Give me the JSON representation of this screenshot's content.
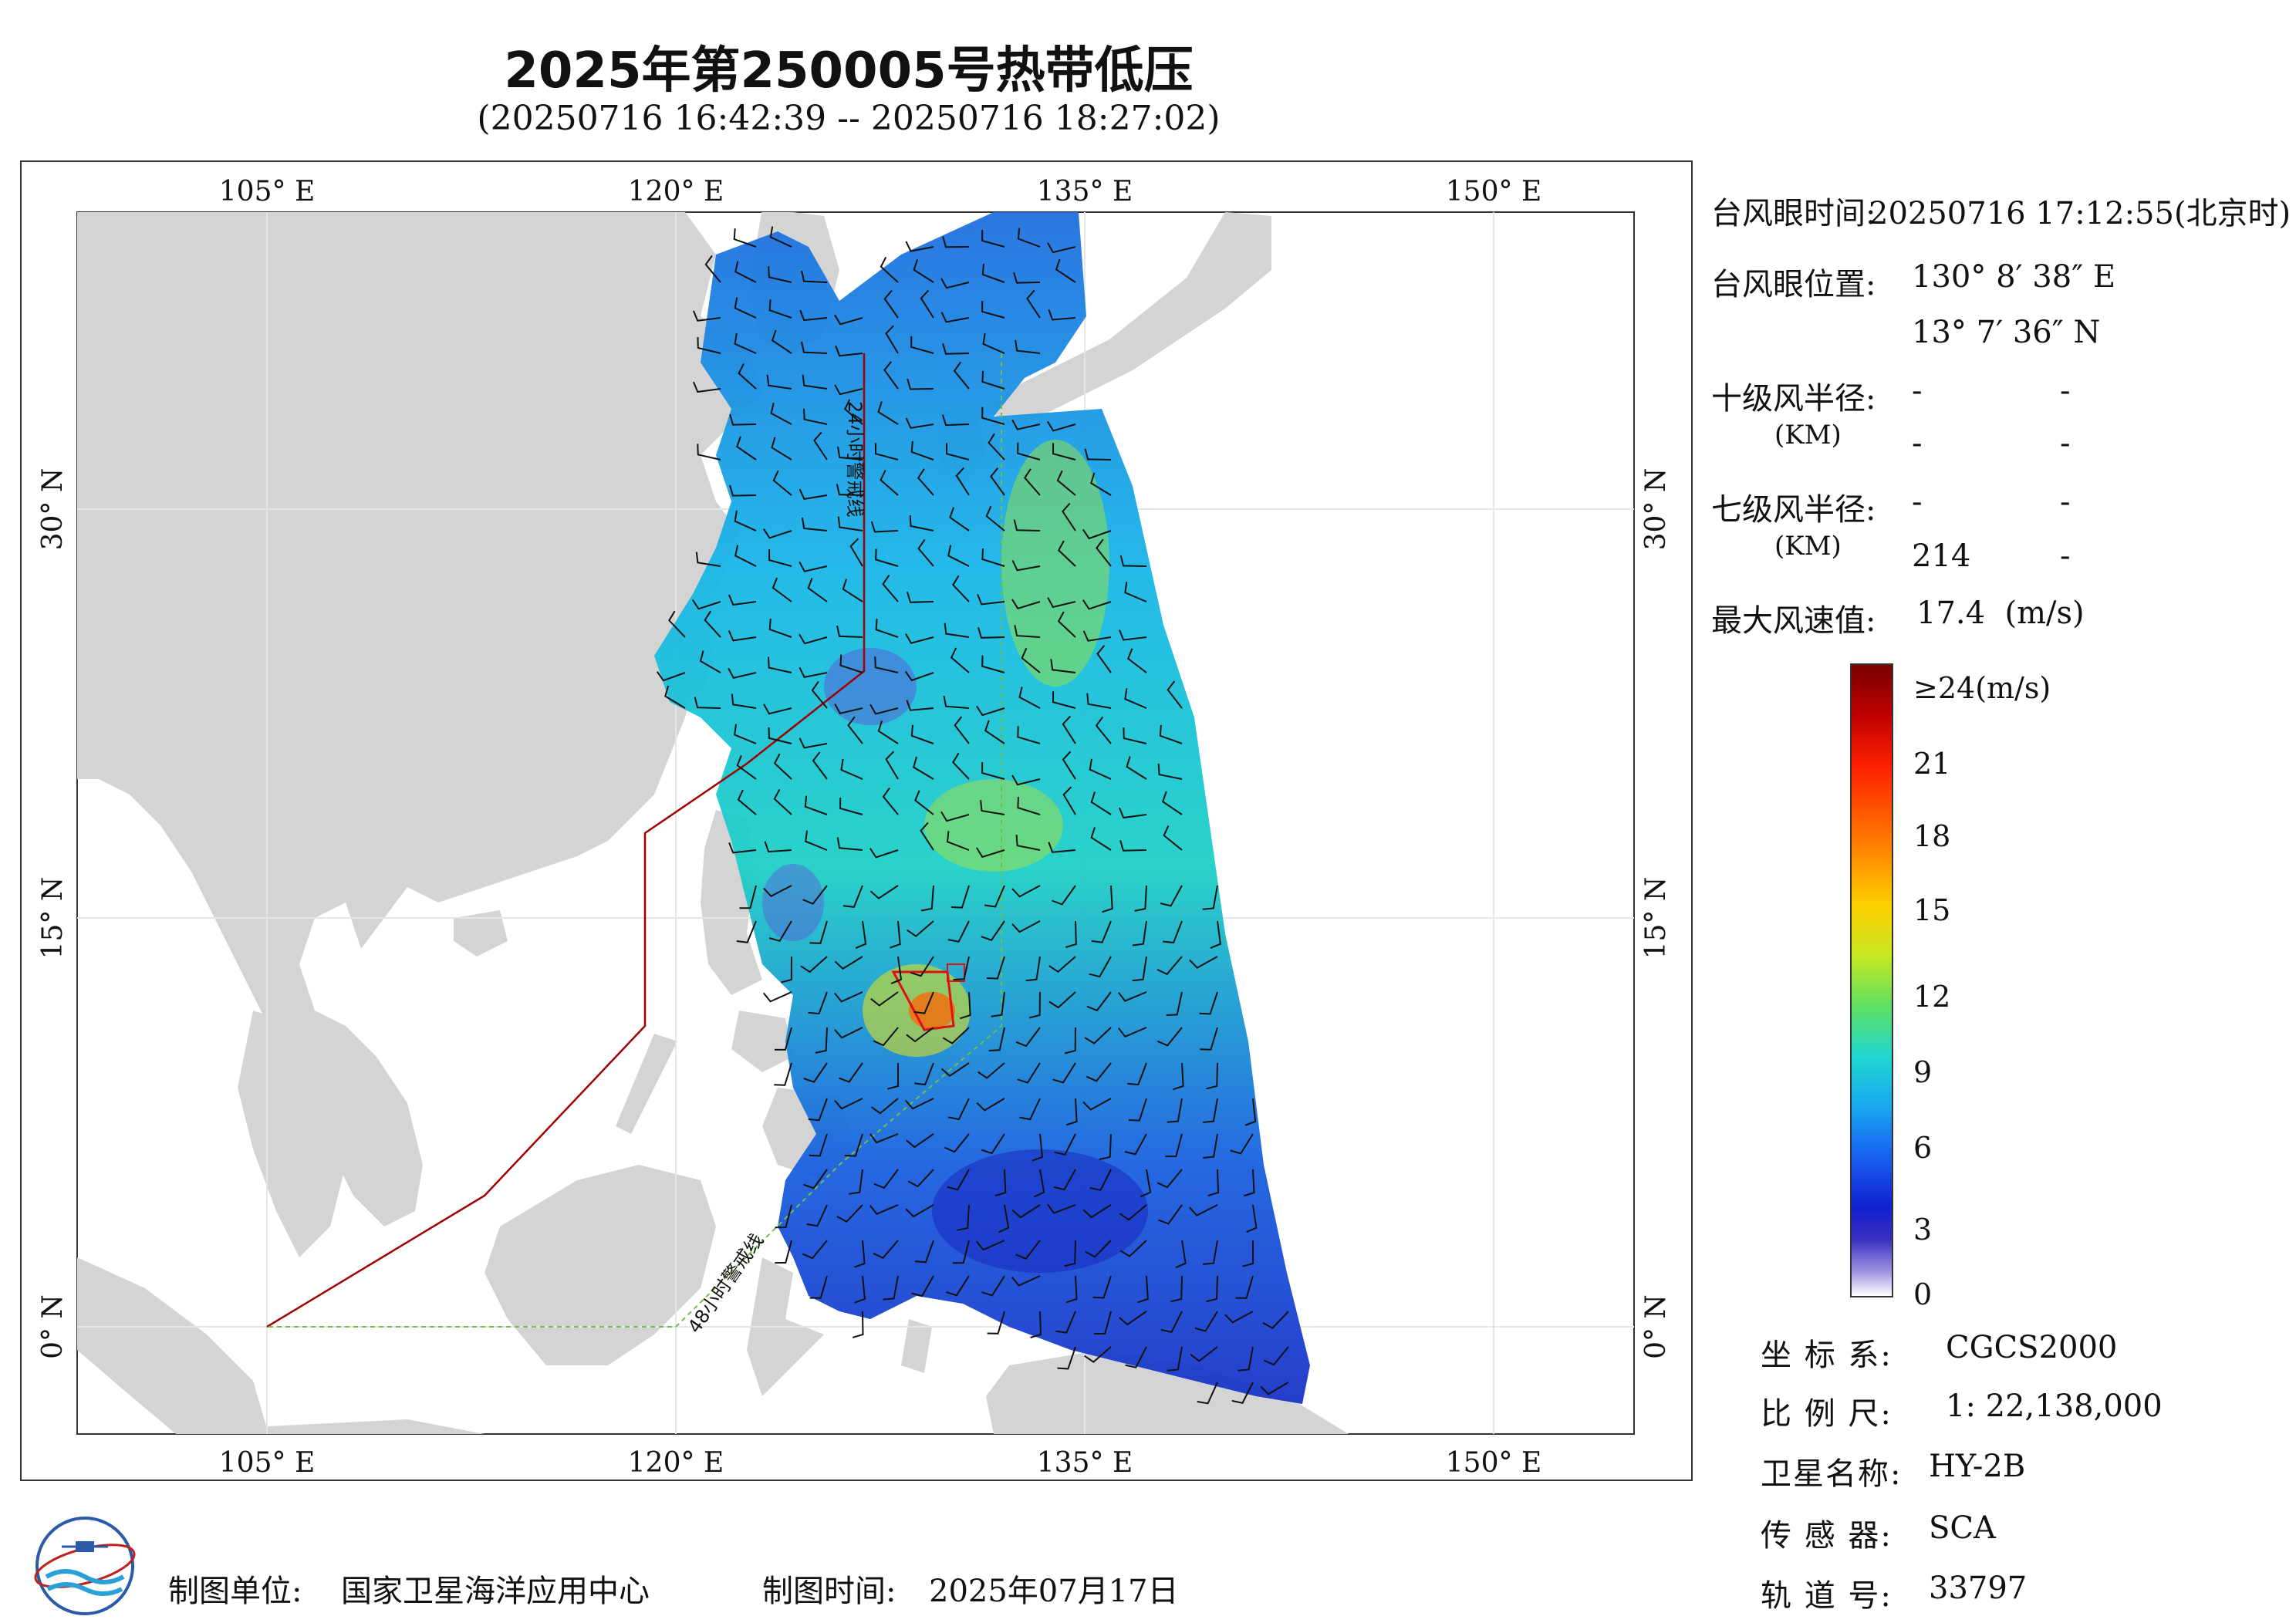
{
  "header": {
    "title": "2025年第250005号热带低压",
    "subtitle": "(20250716 16:42:39 -- 20250716 18:27:02)"
  },
  "map": {
    "lon_ticks_top": [
      "105° E",
      "120° E",
      "135° E",
      "150° E"
    ],
    "lon_ticks_bottom": [
      "105° E",
      "120° E",
      "135° E",
      "150° E"
    ],
    "lat_ticks_left": [
      "30° N",
      "15° N",
      "0° N"
    ],
    "lat_ticks_right": [
      "30° N",
      "15° N",
      "0° N"
    ],
    "warning_24h": "24小时警戒线",
    "warning_48h": "48小时警戒线",
    "colors": {
      "land": "#d4d4d4",
      "sea": "#ffffff",
      "line24": "#a00000",
      "line48": "#6fbf4a",
      "track": "#e01010"
    }
  },
  "info": {
    "eye_time_label": "台风眼时间:",
    "eye_time_value": "20250716 17:12:55(北京时)",
    "eye_pos_label": "台风眼位置:",
    "eye_lon": "130° 8′ 38″ E",
    "eye_lat": "13° 7′ 36″ N",
    "r10_label": "十级风半径:",
    "r10_unit": "(KM)",
    "r10_values": [
      "-",
      "-",
      "-",
      "-"
    ],
    "r7_label": "七级风半径:",
    "r7_unit": "(KM)",
    "r7_values": [
      "-",
      "-",
      "214",
      "-"
    ],
    "max_wind_label": "最大风速值:",
    "max_wind_value": "17.4  (m/s)"
  },
  "colorbar": {
    "labels": [
      "≥24(m/s)",
      "21",
      "18",
      "15",
      "12",
      "9",
      "6",
      "3",
      "0"
    ]
  },
  "meta": {
    "crs_label": "坐 标 系:",
    "crs_value": "CGCS2000",
    "scale_label": "比 例 尺:",
    "scale_value": "1: 22,138,000",
    "sat_label": "卫星名称:",
    "sat_value": "HY-2B",
    "sensor_label": "传 感 器:",
    "sensor_value": "SCA",
    "orbit_label": "轨 道 号:",
    "orbit_value": "33797"
  },
  "footer": {
    "unit_label": "制图单位:",
    "unit_value": "国家卫星海洋应用中心",
    "date_label": "制图时间:",
    "date_value": "2025年07月17日"
  }
}
